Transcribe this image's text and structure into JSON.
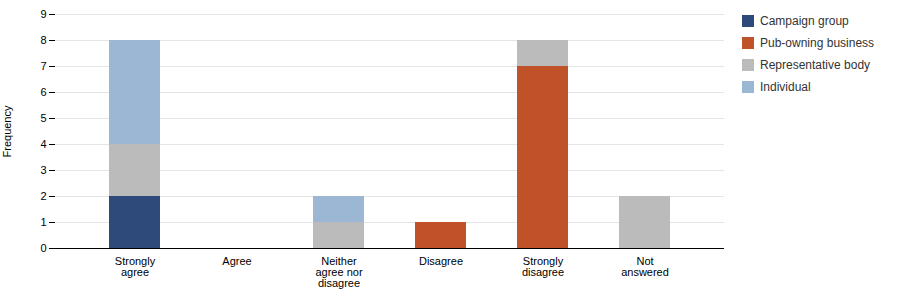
{
  "chart_data": {
    "type": "bar",
    "stacked": true,
    "categories": [
      "Strongly\nagree",
      "Agree",
      "Neither\nagree nor\ndisagree",
      "Disagree",
      "Strongly\ndisagree",
      "Not\nanswered"
    ],
    "series": [
      {
        "name": "Campaign group",
        "color": "#2E4A7A",
        "values": [
          2,
          0,
          0,
          0,
          0,
          0
        ]
      },
      {
        "name": "Pub-owning business",
        "color": "#C0522A",
        "values": [
          0,
          0,
          0,
          1,
          7,
          0
        ]
      },
      {
        "name": "Representative body",
        "color": "#BBBBBB",
        "values": [
          2,
          0,
          1,
          0,
          1,
          2
        ]
      },
      {
        "name": "Individual",
        "color": "#9BB7D4",
        "values": [
          4,
          0,
          1,
          0,
          0,
          0
        ]
      }
    ],
    "ylabel": "Frequency",
    "ylim": [
      0,
      9
    ],
    "yticks": [
      0,
      1,
      2,
      3,
      4,
      5,
      6,
      7,
      8,
      9
    ],
    "grid": true,
    "legend": "right"
  }
}
